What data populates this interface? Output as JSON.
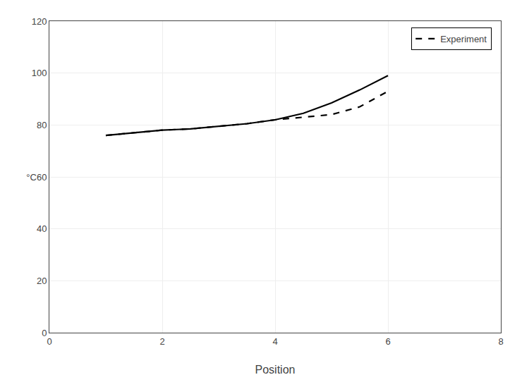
{
  "chart_data": {
    "type": "line",
    "x": [
      1,
      1.5,
      2,
      2.5,
      3,
      3.5,
      4,
      4.5,
      5,
      5.5,
      6
    ],
    "series": [
      {
        "color": "#000000",
        "line_style": "solid",
        "values": [
          76,
          77,
          78,
          78.5,
          79.5,
          80.5,
          82,
          84.5,
          88.5,
          93.5,
          99
        ]
      },
      {
        "name": "Experiment",
        "color": "#000000",
        "line_style": "dashed",
        "values": [
          76,
          77,
          78,
          78.5,
          79.5,
          80.5,
          82,
          83,
          84,
          87,
          93
        ]
      }
    ],
    "xlabel": "Position",
    "xlim": [
      0,
      8
    ],
    "ylim": [
      0,
      120
    ],
    "xticks": [
      0,
      2,
      4,
      6,
      8
    ],
    "yticks": [
      0,
      20,
      40,
      {
        "value": 60,
        "label": "°C60"
      },
      80,
      100,
      120
    ],
    "grid": true,
    "legend": "upper right"
  }
}
